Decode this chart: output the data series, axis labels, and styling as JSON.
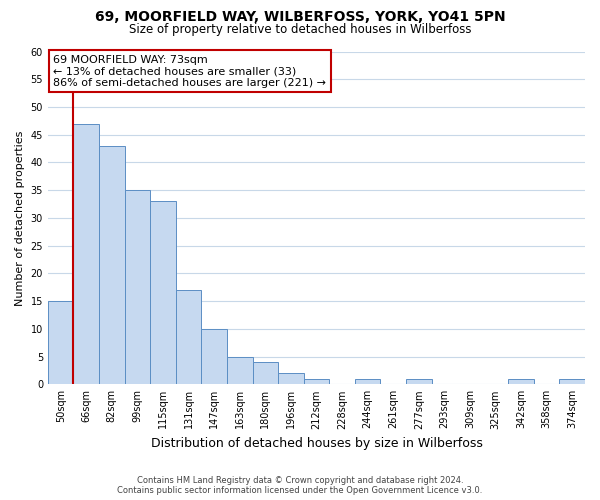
{
  "title": "69, MOORFIELD WAY, WILBERFOSS, YORK, YO41 5PN",
  "subtitle": "Size of property relative to detached houses in Wilberfoss",
  "xlabel": "Distribution of detached houses by size in Wilberfoss",
  "ylabel": "Number of detached properties",
  "bin_labels": [
    "50sqm",
    "66sqm",
    "82sqm",
    "99sqm",
    "115sqm",
    "131sqm",
    "147sqm",
    "163sqm",
    "180sqm",
    "196sqm",
    "212sqm",
    "228sqm",
    "244sqm",
    "261sqm",
    "277sqm",
    "293sqm",
    "309sqm",
    "325sqm",
    "342sqm",
    "358sqm",
    "374sqm"
  ],
  "bar_heights": [
    15,
    47,
    43,
    35,
    33,
    17,
    10,
    5,
    4,
    2,
    1,
    0,
    1,
    0,
    1,
    0,
    0,
    0,
    1,
    0,
    1
  ],
  "bar_color": "#c6d9f0",
  "bar_edge_color": "#5b8ec4",
  "vline_color": "#c00000",
  "vline_x": 0.5,
  "ylim": [
    0,
    60
  ],
  "yticks": [
    0,
    5,
    10,
    15,
    20,
    25,
    30,
    35,
    40,
    45,
    50,
    55,
    60
  ],
  "annotation_title": "69 MOORFIELD WAY: 73sqm",
  "annotation_line1": "← 13% of detached houses are smaller (33)",
  "annotation_line2": "86% of semi-detached houses are larger (221) →",
  "annotation_box_color": "#ffffff",
  "annotation_box_edge": "#c00000",
  "footer1": "Contains HM Land Registry data © Crown copyright and database right 2024.",
  "footer2": "Contains public sector information licensed under the Open Government Licence v3.0.",
  "background_color": "#ffffff",
  "grid_color": "#c8d8e8"
}
